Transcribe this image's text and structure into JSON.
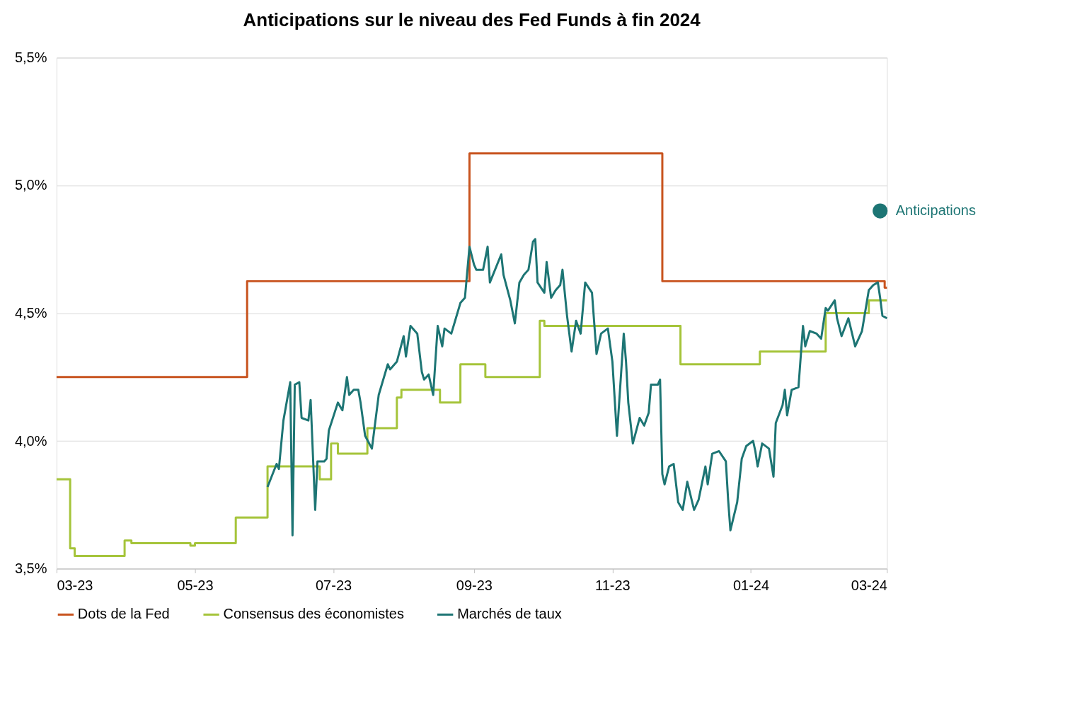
{
  "chart_data": {
    "type": "line",
    "title": "Anticipations sur le niveau des Fed Funds à fin 2024",
    "xlim": [
      "2023-03-01",
      "2024-03-01"
    ],
    "xticks": [
      {
        "value": "2023-03-01",
        "label": "03-23"
      },
      {
        "value": "2023-05-01",
        "label": "05-23"
      },
      {
        "value": "2023-07-01",
        "label": "07-23"
      },
      {
        "value": "2023-09-01",
        "label": "09-23"
      },
      {
        "value": "2023-11-01",
        "label": "11-23"
      },
      {
        "value": "2024-01-01",
        "label": "01-24"
      },
      {
        "value": "2024-03-01",
        "label": "03-24"
      }
    ],
    "ylim": [
      3.5,
      5.5
    ],
    "yticks": [
      {
        "value": 3.5,
        "label": "3,5%"
      },
      {
        "value": 4.0,
        "label": "4,0%"
      },
      {
        "value": 4.5,
        "label": "4,5%"
      },
      {
        "value": 5.0,
        "label": "5,0%"
      },
      {
        "value": 5.5,
        "label": "5,5%"
      }
    ],
    "grid": "y",
    "legend": "bottom",
    "series": [
      {
        "name": "Dots de la Fed",
        "type": "step",
        "color": "#c8531e",
        "x": [
          "2023-03-01",
          "2023-05-24",
          "2023-08-30",
          "2023-11-23",
          "2024-02-29",
          "2024-03-01"
        ],
        "values": [
          4.25,
          4.625,
          5.125,
          4.625,
          4.6,
          4.6
        ]
      },
      {
        "name": "Consensus des économistes",
        "type": "step",
        "color": "#a5c43a",
        "x": [
          "2023-03-01",
          "2023-03-07",
          "2023-03-09",
          "2023-03-31",
          "2023-04-03",
          "2023-04-29",
          "2023-05-01",
          "2023-05-19",
          "2023-06-02",
          "2023-06-25",
          "2023-06-30",
          "2023-07-03",
          "2023-07-16",
          "2023-07-29",
          "2023-07-31",
          "2023-08-17",
          "2023-08-26",
          "2023-09-06",
          "2023-09-30",
          "2023-10-02",
          "2023-12-01",
          "2024-01-05",
          "2024-02-03",
          "2024-02-22",
          "2024-03-01"
        ],
        "values": [
          3.85,
          3.58,
          3.55,
          3.61,
          3.6,
          3.59,
          3.6,
          3.7,
          3.9,
          3.85,
          3.99,
          3.95,
          4.05,
          4.17,
          4.2,
          4.15,
          4.3,
          4.25,
          4.47,
          4.45,
          4.3,
          4.35,
          4.5,
          4.55,
          4.55
        ]
      },
      {
        "name": "Marchés de taux",
        "color": "#1d7574",
        "x": [
          "2023-06-02",
          "2023-06-06",
          "2023-06-07",
          "2023-06-09",
          "2023-06-12",
          "2023-06-13",
          "2023-06-14",
          "2023-06-16",
          "2023-06-17",
          "2023-06-20",
          "2023-06-21",
          "2023-06-23",
          "2023-06-24",
          "2023-06-27",
          "2023-06-28",
          "2023-06-29",
          "2023-07-03",
          "2023-07-05",
          "2023-07-07",
          "2023-07-08",
          "2023-07-10",
          "2023-07-12",
          "2023-07-13",
          "2023-07-15",
          "2023-07-18",
          "2023-07-21",
          "2023-07-25",
          "2023-07-26",
          "2023-07-29",
          "2023-08-01",
          "2023-08-02",
          "2023-08-04",
          "2023-08-07",
          "2023-08-09",
          "2023-08-10",
          "2023-08-12",
          "2023-08-14",
          "2023-08-16",
          "2023-08-18",
          "2023-08-19",
          "2023-08-22",
          "2023-08-24",
          "2023-08-26",
          "2023-08-28",
          "2023-08-30",
          "2023-09-01",
          "2023-09-02",
          "2023-09-05",
          "2023-09-07",
          "2023-09-08",
          "2023-09-13",
          "2023-09-14",
          "2023-09-17",
          "2023-09-19",
          "2023-09-21",
          "2023-09-23",
          "2023-09-25",
          "2023-09-27",
          "2023-09-28",
          "2023-09-29",
          "2023-10-02",
          "2023-10-03",
          "2023-10-05",
          "2023-10-07",
          "2023-10-09",
          "2023-10-10",
          "2023-10-12",
          "2023-10-14",
          "2023-10-16",
          "2023-10-18",
          "2023-10-20",
          "2023-10-23",
          "2023-10-25",
          "2023-10-27",
          "2023-10-30",
          "2023-11-01",
          "2023-11-03",
          "2023-11-06",
          "2023-11-07",
          "2023-11-08",
          "2023-11-10",
          "2023-11-13",
          "2023-11-15",
          "2023-11-17",
          "2023-11-18",
          "2023-11-21",
          "2023-11-22",
          "2023-11-23",
          "2023-11-24",
          "2023-11-26",
          "2023-11-28",
          "2023-11-30",
          "2023-12-02",
          "2023-12-04",
          "2023-12-07",
          "2023-12-09",
          "2023-12-12",
          "2023-12-13",
          "2023-12-15",
          "2023-12-18",
          "2023-12-21",
          "2023-12-22",
          "2023-12-23",
          "2023-12-26",
          "2023-12-28",
          "2023-12-30",
          "2024-01-02",
          "2024-01-03",
          "2024-01-04",
          "2024-01-06",
          "2024-01-09",
          "2024-01-11",
          "2024-01-12",
          "2024-01-15",
          "2024-01-16",
          "2024-01-17",
          "2024-01-19",
          "2024-01-22",
          "2024-01-24",
          "2024-01-25",
          "2024-01-27",
          "2024-01-30",
          "2024-02-01",
          "2024-02-03",
          "2024-02-04",
          "2024-02-07",
          "2024-02-08",
          "2024-02-10",
          "2024-02-13",
          "2024-02-16",
          "2024-02-19",
          "2024-02-22",
          "2024-02-24",
          "2024-02-26",
          "2024-02-27",
          "2024-02-28",
          "2024-03-01"
        ],
        "values": [
          3.82,
          3.91,
          3.89,
          4.08,
          4.23,
          3.63,
          4.22,
          4.23,
          4.09,
          4.08,
          4.16,
          3.73,
          3.92,
          3.92,
          3.93,
          4.04,
          4.15,
          4.12,
          4.25,
          4.18,
          4.2,
          4.2,
          4.15,
          4.02,
          3.97,
          4.18,
          4.3,
          4.28,
          4.31,
          4.41,
          4.33,
          4.45,
          4.42,
          4.27,
          4.24,
          4.26,
          4.18,
          4.45,
          4.37,
          4.44,
          4.42,
          4.48,
          4.54,
          4.56,
          4.76,
          4.69,
          4.67,
          4.67,
          4.76,
          4.62,
          4.73,
          4.65,
          4.55,
          4.46,
          4.62,
          4.65,
          4.67,
          4.78,
          4.79,
          4.62,
          4.58,
          4.7,
          4.56,
          4.59,
          4.61,
          4.67,
          4.49,
          4.35,
          4.47,
          4.42,
          4.62,
          4.58,
          4.34,
          4.42,
          4.44,
          4.31,
          4.02,
          4.42,
          4.31,
          4.15,
          3.99,
          4.09,
          4.06,
          4.11,
          4.22,
          4.22,
          4.24,
          3.87,
          3.83,
          3.9,
          3.91,
          3.76,
          3.73,
          3.84,
          3.73,
          3.77,
          3.9,
          3.83,
          3.95,
          3.96,
          3.92,
          3.77,
          3.65,
          3.76,
          3.93,
          3.98,
          4.0,
          3.96,
          3.9,
          3.99,
          3.97,
          3.86,
          4.07,
          4.14,
          4.2,
          4.1,
          4.2,
          4.21,
          4.45,
          4.37,
          4.43,
          4.42,
          4.4,
          4.52,
          4.51,
          4.55,
          4.48,
          4.41,
          4.48,
          4.37,
          4.43,
          4.59,
          4.61,
          4.62,
          4.56,
          4.49,
          4.48
        ]
      },
      {
        "name": "Anticipations",
        "type": "scatter",
        "color": "#1d7574",
        "x": [
          "2024-02-27"
        ],
        "values": [
          4.9
        ]
      }
    ]
  }
}
